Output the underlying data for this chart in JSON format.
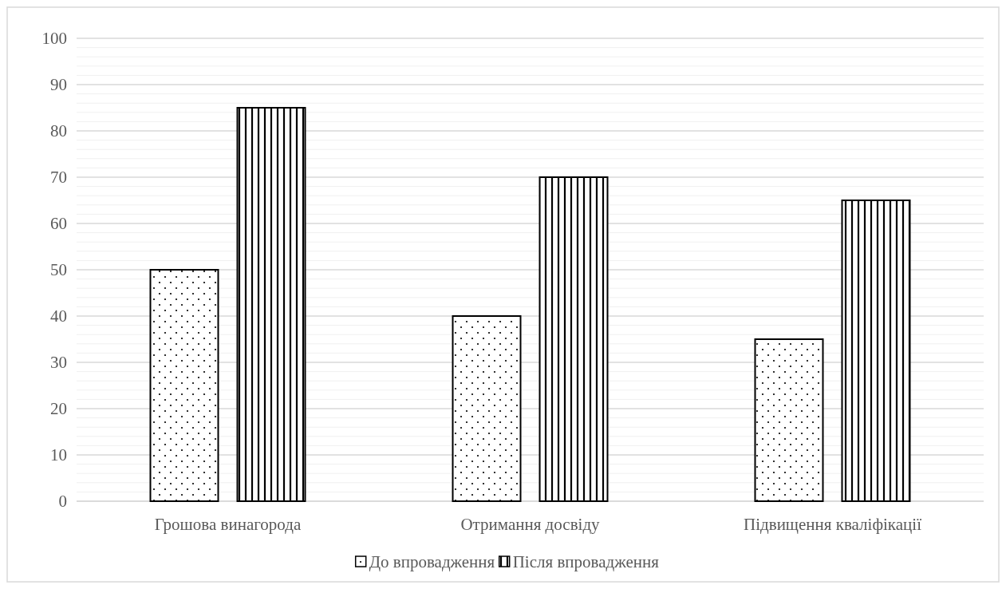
{
  "chart_data": {
    "type": "bar",
    "categories": [
      "Грошова винагорода",
      "Отримання досвіду",
      "Підвищення кваліфікації"
    ],
    "series": [
      {
        "name": "До впровадження",
        "color": "#000000",
        "values": [
          50,
          40,
          35
        ]
      },
      {
        "name": "Після впровадження",
        "color": "#000000",
        "values": [
          85,
          70,
          65
        ]
      }
    ],
    "ylim": [
      0,
      100
    ],
    "yticks": [
      0,
      {
        "value": 2,
        "label": null
      },
      {
        "value": 4,
        "label": null
      },
      {
        "value": 6,
        "label": null
      },
      {
        "value": 8,
        "label": null
      },
      10,
      {
        "value": 12,
        "label": null
      },
      {
        "value": 14,
        "label": null
      },
      {
        "value": 16,
        "label": null
      },
      {
        "value": 18,
        "label": null
      },
      20,
      {
        "value": 22,
        "label": null
      },
      {
        "value": 24,
        "label": null
      },
      {
        "value": 26,
        "label": null
      },
      {
        "value": 28,
        "label": null
      },
      30,
      {
        "value": 32,
        "label": null
      },
      {
        "value": 34,
        "label": null
      },
      {
        "value": 36,
        "label": null
      },
      {
        "value": 38,
        "label": null
      },
      40,
      {
        "value": 42,
        "label": null
      },
      {
        "value": 44,
        "label": null
      },
      {
        "value": 46,
        "label": null
      },
      {
        "value": 48,
        "label": null
      },
      50,
      {
        "value": 52,
        "label": null
      },
      {
        "value": 54,
        "label": null
      },
      {
        "value": 56,
        "label": null
      },
      {
        "value": 58,
        "label": null
      },
      60,
      {
        "value": 62,
        "label": null
      },
      {
        "value": 64,
        "label": null
      },
      {
        "value": 66,
        "label": null
      },
      {
        "value": 68,
        "label": null
      },
      70,
      {
        "value": 72,
        "label": null
      },
      {
        "value": 74,
        "label": null
      },
      {
        "value": 76,
        "label": null
      },
      {
        "value": 78,
        "label": null
      },
      80,
      {
        "value": 82,
        "label": null
      },
      {
        "value": 84,
        "label": null
      },
      {
        "value": 86,
        "label": null
      },
      {
        "value": 88,
        "label": null
      },
      90,
      {
        "value": 92,
        "label": null
      },
      {
        "value": 94,
        "label": null
      },
      {
        "value": 96,
        "label": null
      },
      {
        "value": 98,
        "label": null
      },
      100
    ],
    "grid": "y",
    "legend": "bottom"
  }
}
